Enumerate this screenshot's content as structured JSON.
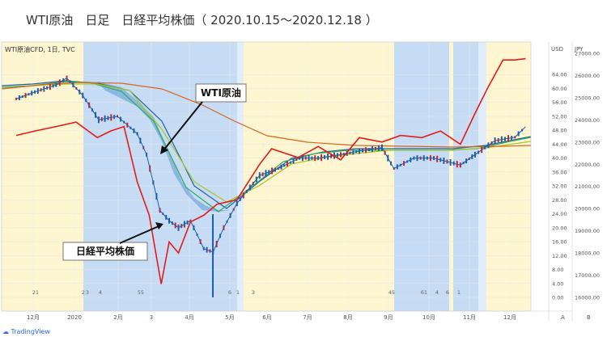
{
  "header": {
    "title": "WTI原油　日足　日経平均株価（ 2020.10.15〜2020.12.18 ）"
  },
  "chart_data": {
    "type": "line",
    "symbol_label": "WTI原油CFD, 1日, TVC",
    "x_tick_labels": [
      "12月",
      "2020",
      "2月",
      "3",
      "4月",
      "5月",
      "6月",
      "7月",
      "8月",
      "9月",
      "10月",
      "11月",
      "12月"
    ],
    "x_tick_positions": [
      41,
      92,
      146,
      187,
      234,
      284,
      330,
      380,
      430,
      480,
      530,
      580,
      630
    ],
    "right_axis_title": "USD",
    "right_ticks": [
      "64.00",
      "60.00",
      "56.00",
      "52.00",
      "48.00",
      "44.00",
      "40.00",
      "36.00",
      "32.00",
      "28.00",
      "24.00",
      "20.00",
      "16.00",
      "12.00",
      "8.00",
      "4.00",
      "0.00"
    ],
    "right_range": [
      0,
      68
    ],
    "far_right_axis_title": "JPY",
    "far_right_ticks": [
      "27000.00",
      "26000.00",
      "25000.00",
      "24000.00",
      "23000.00",
      "22000.00",
      "21000.00",
      "20000.00",
      "19000.00",
      "18000.00",
      "17000.00",
      "16000.00"
    ],
    "far_right_range": [
      15800,
      27300
    ],
    "axis_corner_labels": [
      "A",
      "B"
    ],
    "bottom_markers": [
      "2",
      "1",
      "2",
      "3",
      "4",
      "5",
      "5",
      "6",
      "1",
      "3",
      "4",
      "5",
      "6",
      "1",
      "4",
      "6",
      "1"
    ],
    "annotations": [
      "WTI原油",
      "日経平均株価"
    ],
    "series": [
      {
        "name": "WTI原油",
        "unit": "USD",
        "x": [
          "2019-12-01",
          "2019-12-15",
          "2019-12-31",
          "2020-01-08",
          "2020-01-20",
          "2020-02-01",
          "2020-02-15",
          "2020-03-01",
          "2020-03-08",
          "2020-03-18",
          "2020-03-25",
          "2020-04-01",
          "2020-04-10",
          "2020-04-20",
          "2020-04-27",
          "2020-05-05",
          "2020-05-15",
          "2020-06-01",
          "2020-06-15",
          "2020-07-01",
          "2020-07-15",
          "2020-08-01",
          "2020-08-15",
          "2020-09-01",
          "2020-09-10",
          "2020-09-25",
          "2020-10-10",
          "2020-10-30",
          "2020-11-10",
          "2020-11-25",
          "2020-12-10",
          "2020-12-18"
        ],
        "values": [
          57,
          59,
          61,
          63,
          58,
          51,
          52,
          47,
          41,
          25,
          22,
          20,
          22,
          14,
          13,
          20,
          27,
          35,
          37,
          40,
          40,
          41,
          42,
          43,
          37,
          40,
          40,
          38,
          41,
          45,
          46,
          49
        ]
      },
      {
        "name": "日経平均株価",
        "unit": "JPY",
        "x": [
          "2019-12-01",
          "2019-12-15",
          "2019-12-31",
          "2020-01-15",
          "2020-01-31",
          "2020-02-10",
          "2020-02-20",
          "2020-03-01",
          "2020-03-10",
          "2020-03-19",
          "2020-03-25",
          "2020-04-01",
          "2020-04-10",
          "2020-04-20",
          "2020-04-30",
          "2020-05-15",
          "2020-06-01",
          "2020-06-10",
          "2020-06-30",
          "2020-07-15",
          "2020-08-01",
          "2020-08-15",
          "2020-09-01",
          "2020-09-15",
          "2020-10-01",
          "2020-10-15",
          "2020-10-30",
          "2020-11-10",
          "2020-11-20",
          "2020-12-01",
          "2020-12-10",
          "2020-12-18"
        ],
        "values": [
          23300,
          23500,
          23700,
          23900,
          23200,
          23500,
          23700,
          21200,
          19700,
          16600,
          18500,
          18000,
          19400,
          19700,
          20200,
          20400,
          22000,
          22700,
          22300,
          22800,
          22200,
          23200,
          23000,
          23300,
          23200,
          23500,
          22900,
          24300,
          25500,
          26700,
          26700,
          26760
        ]
      }
    ]
  }
}
